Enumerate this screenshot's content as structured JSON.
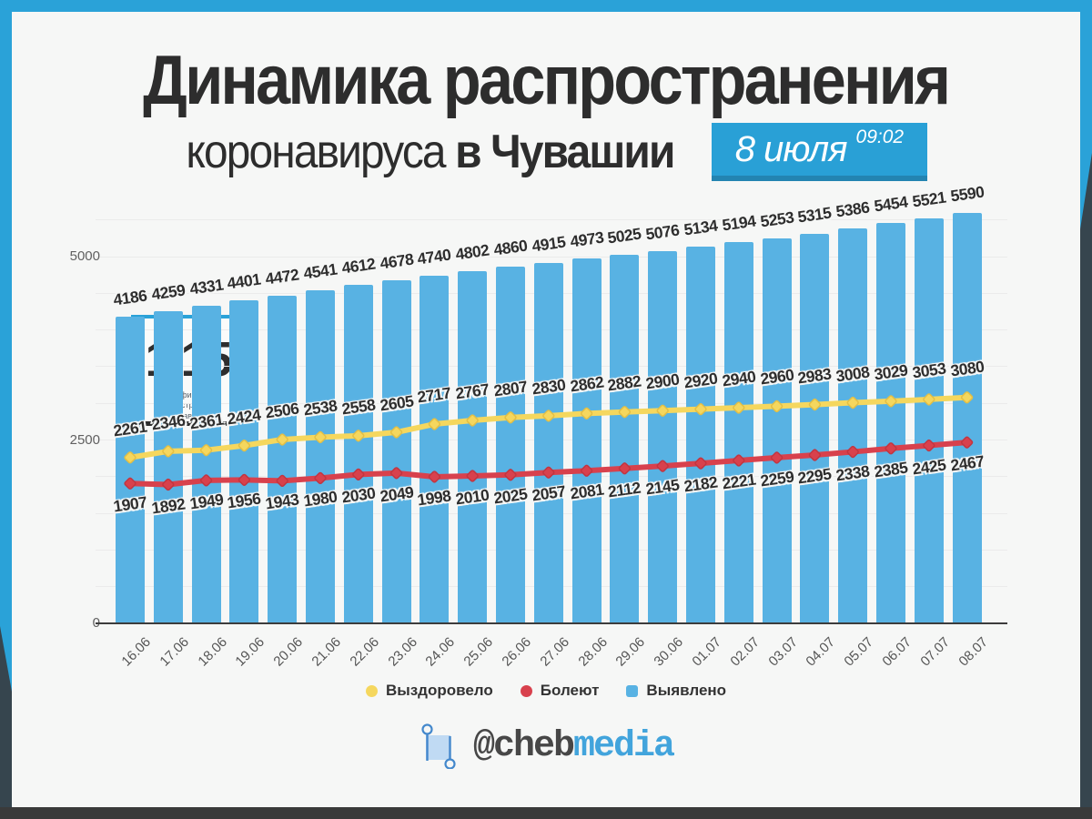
{
  "page": {
    "frame_blue": "#2aa2d8",
    "frame_dark_side": "#36454e",
    "frame_dark_bottom": "#3a3a3a",
    "card_bg": "#f6f7f6"
  },
  "header": {
    "title": "Динамика распространения",
    "subtitle_regular": "коронавируса",
    "subtitle_bold": "в Чувашии",
    "badge": {
      "date": "8 июля",
      "time": "09:02",
      "bg": "#29a0d6"
    }
  },
  "coefficient": {
    "value": "1,15",
    "label_line1": "коэффициент распространения",
    "label_line2": "коронавируса"
  },
  "chart_data": {
    "type": "bar+line",
    "categories": [
      "16.06",
      "17.06",
      "18.06",
      "19.06",
      "20.06",
      "21.06",
      "22.06",
      "23.06",
      "24.06",
      "25.06",
      "26.06",
      "27.06",
      "28.06",
      "29.06",
      "30.06",
      "01.07",
      "02.07",
      "03.07",
      "04.07",
      "05.07",
      "06.07",
      "07.07",
      "08.07"
    ],
    "series": [
      {
        "name": "Выявлено",
        "type": "bar",
        "color": "#58b2e3",
        "edge": "#58b2e3",
        "values": [
          4186,
          4259,
          4331,
          4401,
          4472,
          4541,
          4612,
          4678,
          4740,
          4802,
          4860,
          4915,
          4973,
          5025,
          5076,
          5134,
          5194,
          5253,
          5315,
          5386,
          5454,
          5521,
          5590
        ]
      },
      {
        "name": "Выздоровело",
        "type": "line",
        "color": "#f5d75e",
        "edge": "#e3bf45",
        "values": [
          2261,
          2346,
          2361,
          2424,
          2506,
          2538,
          2558,
          2605,
          2717,
          2767,
          2807,
          2830,
          2862,
          2882,
          2900,
          2920,
          2940,
          2960,
          2983,
          3008,
          3029,
          3053,
          3080
        ]
      },
      {
        "name": "Болеют",
        "type": "line",
        "color": "#d8414d",
        "edge": "#c23540",
        "values": [
          1907,
          1892,
          1949,
          1956,
          1943,
          1980,
          2030,
          2049,
          1998,
          2010,
          2025,
          2057,
          2081,
          2112,
          2145,
          2182,
          2221,
          2259,
          2295,
          2338,
          2385,
          2425,
          2467
        ]
      }
    ],
    "yticks": [
      0,
      2500,
      5000
    ],
    "ylim": [
      0,
      5590
    ],
    "grid_step": 500,
    "grid": true,
    "legend_order": [
      "Выздоровело",
      "Болеют",
      "Выявлено"
    ],
    "legend_position": "bottom"
  },
  "footer": {
    "handle_prefix": "@cheb",
    "handle_suffix": "media"
  }
}
